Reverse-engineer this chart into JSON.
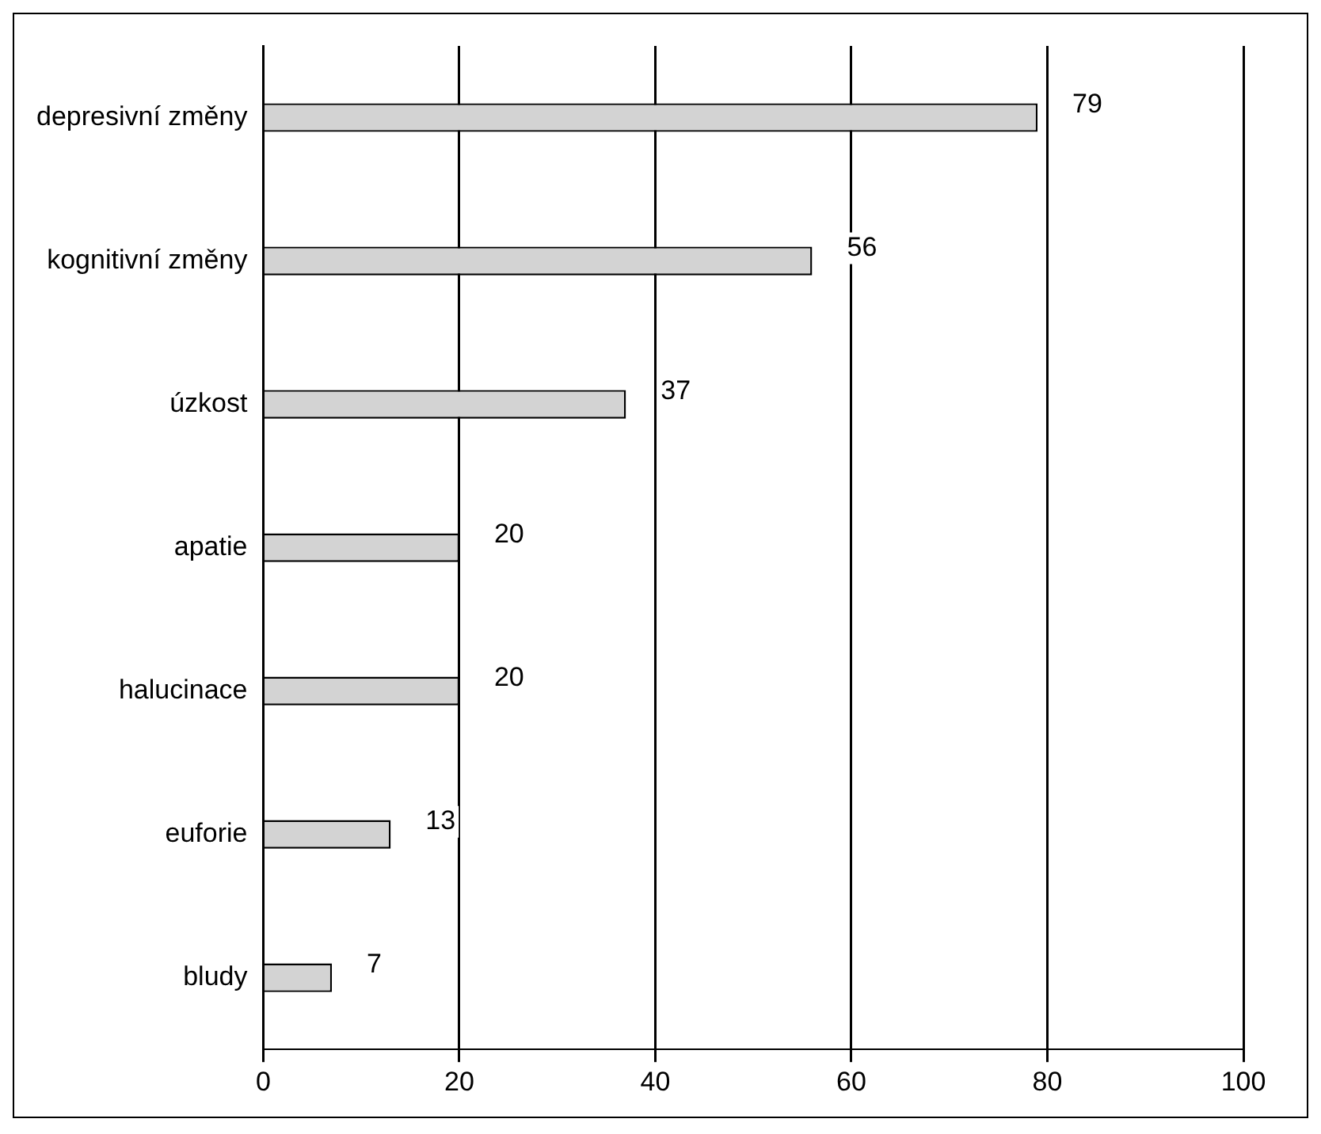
{
  "chart_data": {
    "type": "bar",
    "orientation": "horizontal",
    "categories": [
      "depresivní změny",
      "kognitivní změny",
      "úzkost",
      "apatie",
      "halucinace",
      "euforie",
      "bludy"
    ],
    "values": [
      79,
      56,
      37,
      20,
      20,
      13,
      7
    ],
    "color": "#d3d3d3",
    "xlim": [
      0,
      100
    ],
    "xticks": [
      0,
      20,
      40,
      60,
      80,
      100
    ],
    "grid": "x",
    "data_labels": true
  }
}
